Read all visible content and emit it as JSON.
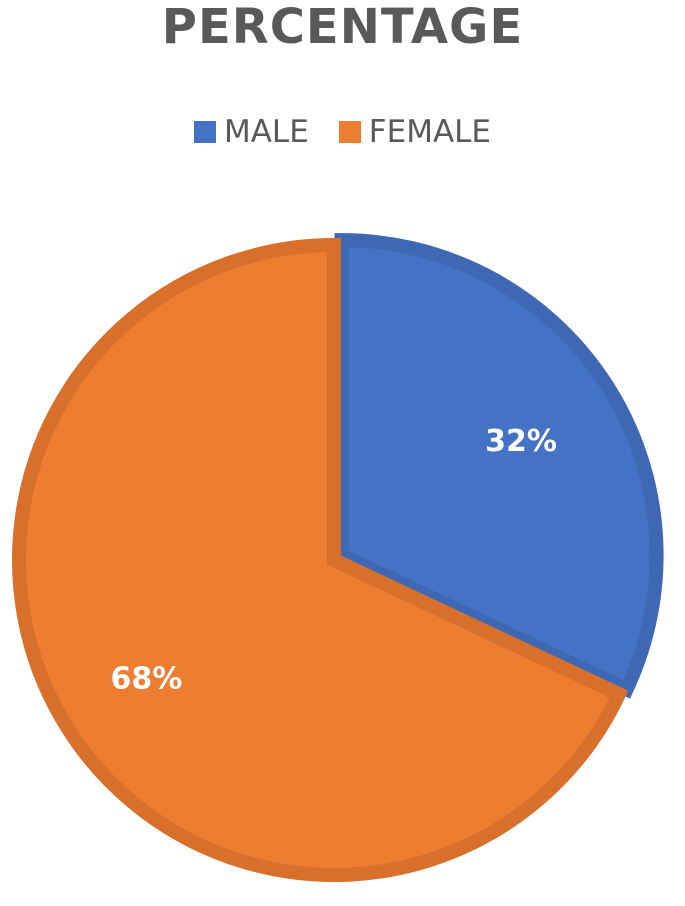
{
  "chart_data": {
    "type": "pie",
    "title": "PERCENTAGE",
    "categories": [
      "MALE",
      "FEMALE"
    ],
    "values": [
      32,
      68
    ],
    "data_labels": [
      "32%",
      "68%"
    ],
    "colors": [
      "#4472C4",
      "#ED7D31"
    ],
    "border_colors": [
      "#3E68B3",
      "#D86F2B"
    ],
    "legend_position": "top",
    "start_angle": "12 o'clock, clockwise"
  }
}
